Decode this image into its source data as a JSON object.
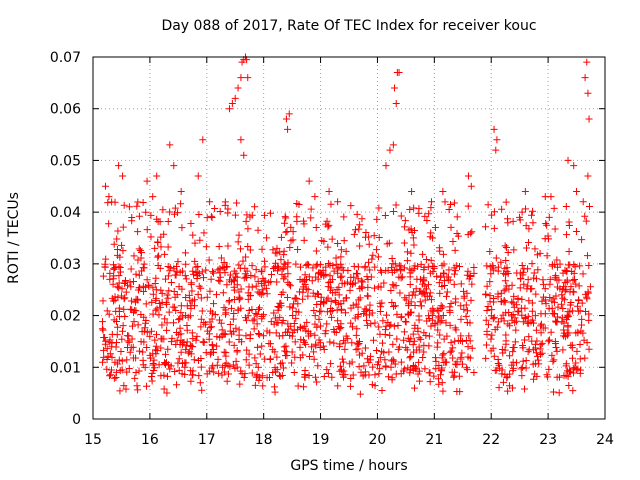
{
  "chart_data": {
    "type": "scatter",
    "title": "Day 088 of 2017, Rate Of TEC Index for receiver kouc",
    "xlabel": "GPS time / hours",
    "ylabel": "ROTI / TECUs",
    "xlim": [
      15,
      24
    ],
    "ylim": [
      0,
      0.07
    ],
    "x_ticks": [
      15,
      16,
      17,
      18,
      19,
      20,
      21,
      22,
      23,
      24
    ],
    "x_tick_labels": [
      "15",
      "16",
      "17",
      "18",
      "19",
      "20",
      "21",
      "22",
      "23",
      "24"
    ],
    "y_ticks": [
      0,
      0.01,
      0.02,
      0.03,
      0.04,
      0.05,
      0.06,
      0.07
    ],
    "y_tick_labels": [
      "0",
      "0.01",
      "0.02",
      "0.03",
      "0.04",
      "0.05",
      "0.06",
      "0.07"
    ],
    "grid": true,
    "marker": "+",
    "color": "#ff0000",
    "x_data_range": [
      15.15,
      23.75
    ],
    "x_gap": [
      21.7,
      21.9
    ],
    "bulk_range": [
      0.008,
      0.03
    ],
    "series": [
      {
        "name": "ROTI",
        "x": [
          15.22,
          15.28,
          15.45,
          15.52,
          15.95,
          16.05,
          16.12,
          16.35,
          16.42,
          16.55,
          16.85,
          16.93,
          17.05,
          17.4,
          17.45,
          17.5,
          17.55,
          17.6,
          17.62,
          17.65,
          17.68,
          17.7,
          17.72,
          17.6,
          17.65,
          18.4,
          18.45,
          18.42,
          18.8,
          18.9,
          19.15,
          19.3,
          20.15,
          20.22,
          20.28,
          20.3,
          20.35,
          20.38,
          20.33,
          20.6,
          20.95,
          21.15,
          21.6,
          21.65,
          22.05,
          22.08,
          22.1,
          22.6,
          22.95,
          23.05,
          23.35,
          23.45,
          23.5,
          23.65,
          23.68,
          23.7,
          23.72,
          23.7,
          20.08,
          19.7,
          18.2,
          16.25
        ],
        "y": [
          0.045,
          0.043,
          0.049,
          0.047,
          0.046,
          0.043,
          0.047,
          0.053,
          0.049,
          0.044,
          0.047,
          0.054,
          0.042,
          0.06,
          0.061,
          0.062,
          0.064,
          0.066,
          0.069,
          0.0695,
          0.07,
          0.0695,
          0.066,
          0.054,
          0.051,
          0.058,
          0.059,
          0.056,
          0.046,
          0.043,
          0.044,
          0.042,
          0.049,
          0.052,
          0.053,
          0.064,
          0.067,
          0.067,
          0.061,
          0.044,
          0.042,
          0.044,
          0.047,
          0.045,
          0.056,
          0.052,
          0.054,
          0.044,
          0.043,
          0.043,
          0.05,
          0.049,
          0.044,
          0.066,
          0.069,
          0.063,
          0.058,
          0.047,
          0.0055,
          0.0048,
          0.0052,
          0.0058
        ]
      }
    ]
  }
}
